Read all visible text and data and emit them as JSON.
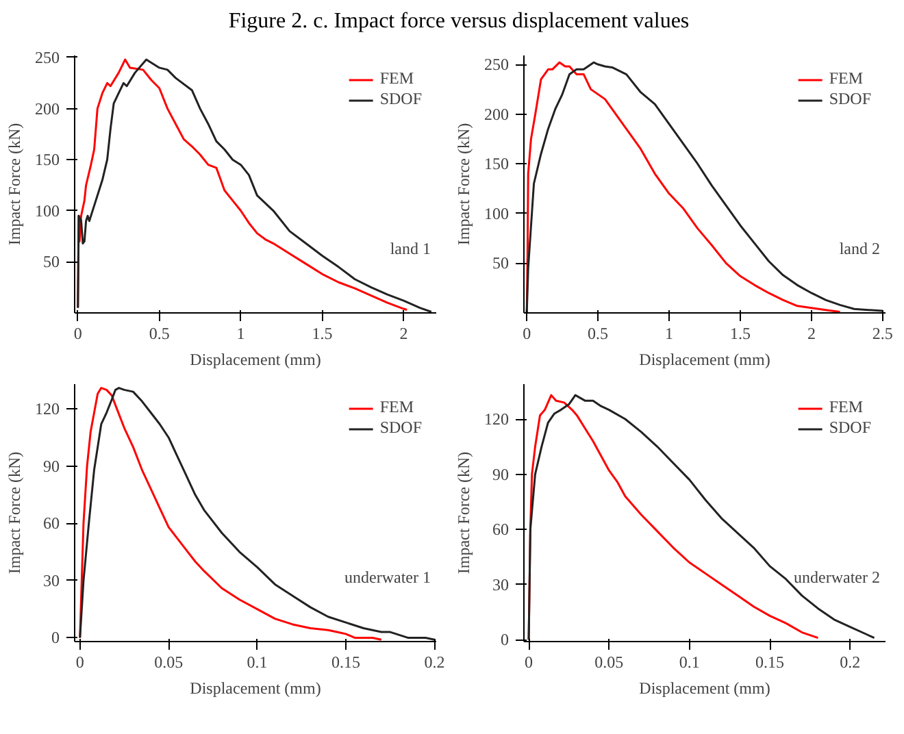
{
  "chart_data": [
    {
      "type": "line",
      "title": "Figure 2. c. Impact force versus displacement values",
      "xlabel": "Displacement (mm)",
      "ylabel": "Impact Force (kN)",
      "annotations": [
        "land 1"
      ],
      "legend": "top right",
      "grid": false,
      "xlim": [
        -0.02,
        2.2
      ],
      "ylim": [
        0,
        252
      ],
      "xticks": [
        0,
        0.5,
        1,
        1.5,
        2
      ],
      "yticks": [
        50,
        100,
        150,
        200,
        250
      ],
      "series": [
        {
          "name": "FEM",
          "color": "#ff0000",
          "x": [
            0,
            0.005,
            0.01,
            0.02,
            0.04,
            0.05,
            0.08,
            0.1,
            0.12,
            0.15,
            0.18,
            0.2,
            0.25,
            0.29,
            0.32,
            0.4,
            0.45,
            0.5,
            0.55,
            0.6,
            0.65,
            0.7,
            0.75,
            0.8,
            0.85,
            0.9,
            0.95,
            1.0,
            1.05,
            1.1,
            1.15,
            1.2,
            1.3,
            1.4,
            1.5,
            1.6,
            1.7,
            1.8,
            1.9,
            2.0,
            2.02
          ],
          "values": [
            5,
            95,
            70,
            95,
            110,
            125,
            145,
            160,
            200,
            215,
            225,
            222,
            235,
            248,
            240,
            238,
            228,
            220,
            200,
            185,
            170,
            163,
            155,
            145,
            142,
            120,
            110,
            100,
            88,
            78,
            72,
            68,
            58,
            48,
            38,
            30,
            24,
            17,
            10,
            4,
            3
          ]
        },
        {
          "name": "SDOF",
          "color": "#222222",
          "x": [
            0,
            0.005,
            0.02,
            0.03,
            0.04,
            0.05,
            0.06,
            0.07,
            0.1,
            0.15,
            0.18,
            0.2,
            0.22,
            0.25,
            0.28,
            0.3,
            0.35,
            0.42,
            0.45,
            0.5,
            0.55,
            0.6,
            0.7,
            0.75,
            0.8,
            0.85,
            0.9,
            0.95,
            1.0,
            1.05,
            1.1,
            1.2,
            1.3,
            1.4,
            1.5,
            1.6,
            1.7,
            1.8,
            1.9,
            2.0,
            2.1,
            2.17
          ],
          "values": [
            5,
            95,
            90,
            68,
            70,
            90,
            95,
            90,
            105,
            130,
            150,
            180,
            205,
            215,
            225,
            222,
            235,
            248,
            245,
            240,
            238,
            230,
            218,
            200,
            185,
            168,
            160,
            150,
            145,
            135,
            115,
            100,
            80,
            68,
            56,
            45,
            33,
            25,
            18,
            12,
            5,
            1
          ]
        }
      ]
    },
    {
      "type": "line",
      "xlabel": "Displacement (mm)",
      "ylabel": "Impact Force (kN)",
      "annotations": [
        "land 2"
      ],
      "legend": "top right",
      "grid": false,
      "xlim": [
        -0.02,
        2.52
      ],
      "ylim": [
        0,
        259
      ],
      "xticks": [
        0,
        0.5,
        1,
        1.5,
        2,
        2.5
      ],
      "yticks": [
        50,
        100,
        150,
        200,
        250
      ],
      "series": [
        {
          "name": "FEM",
          "color": "#ff0000",
          "x": [
            0,
            0.005,
            0.01,
            0.03,
            0.06,
            0.1,
            0.15,
            0.18,
            0.23,
            0.27,
            0.3,
            0.35,
            0.4,
            0.45,
            0.55,
            0.6,
            0.7,
            0.8,
            0.9,
            1.0,
            1.1,
            1.2,
            1.3,
            1.4,
            1.5,
            1.6,
            1.7,
            1.8,
            1.9,
            2.0,
            2.1,
            2.2
          ],
          "values": [
            0,
            50,
            140,
            175,
            200,
            235,
            245,
            245,
            252,
            248,
            248,
            240,
            240,
            225,
            215,
            205,
            185,
            165,
            140,
            120,
            105,
            85,
            68,
            50,
            37,
            28,
            20,
            13,
            7,
            5,
            3,
            1
          ]
        },
        {
          "name": "SDOF",
          "color": "#222222",
          "x": [
            0,
            0.01,
            0.05,
            0.1,
            0.15,
            0.2,
            0.25,
            0.3,
            0.35,
            0.4,
            0.47,
            0.5,
            0.55,
            0.6,
            0.7,
            0.8,
            0.9,
            1.0,
            1.1,
            1.2,
            1.3,
            1.4,
            1.5,
            1.6,
            1.7,
            1.8,
            1.9,
            2.0,
            2.1,
            2.2,
            2.3,
            2.4,
            2.5
          ],
          "values": [
            0,
            45,
            130,
            160,
            185,
            205,
            220,
            240,
            245,
            245,
            252,
            250,
            248,
            247,
            240,
            222,
            210,
            190,
            170,
            150,
            128,
            108,
            88,
            70,
            52,
            38,
            28,
            20,
            13,
            8,
            4,
            3,
            2
          ]
        }
      ]
    },
    {
      "type": "line",
      "xlabel": "Displacement (mm)",
      "ylabel": "Impact Force (kN)",
      "annotations": [
        "underwater 1"
      ],
      "legend": "top right",
      "grid": false,
      "xlim": [
        -0.003,
        0.201
      ],
      "ylim": [
        -2,
        133
      ],
      "xticks": [
        0,
        0.05,
        0.1,
        0.15,
        0.2
      ],
      "yticks": [
        0,
        30,
        60,
        90,
        120
      ],
      "series": [
        {
          "name": "FEM",
          "color": "#ff0000",
          "x": [
            0,
            0.002,
            0.004,
            0.006,
            0.008,
            0.01,
            0.012,
            0.015,
            0.018,
            0.02,
            0.025,
            0.03,
            0.035,
            0.04,
            0.045,
            0.05,
            0.055,
            0.06,
            0.065,
            0.07,
            0.08,
            0.09,
            0.1,
            0.11,
            0.12,
            0.13,
            0.14,
            0.145,
            0.15,
            0.155,
            0.165,
            0.17
          ],
          "values": [
            0,
            60,
            90,
            108,
            118,
            128,
            131,
            130,
            127,
            122,
            110,
            100,
            88,
            78,
            68,
            58,
            52,
            46,
            40,
            35,
            26,
            20,
            15,
            10,
            7,
            5,
            4,
            3,
            2,
            0,
            0,
            -1
          ]
        },
        {
          "name": "SDOF",
          "color": "#222222",
          "x": [
            0,
            0.002,
            0.005,
            0.008,
            0.01,
            0.012,
            0.015,
            0.018,
            0.02,
            0.022,
            0.025,
            0.03,
            0.035,
            0.04,
            0.045,
            0.05,
            0.055,
            0.06,
            0.065,
            0.07,
            0.08,
            0.09,
            0.1,
            0.11,
            0.12,
            0.13,
            0.14,
            0.15,
            0.16,
            0.17,
            0.175,
            0.185,
            0.19,
            0.195,
            0.2
          ],
          "values": [
            0,
            30,
            60,
            88,
            100,
            112,
            118,
            125,
            130,
            131,
            130,
            129,
            124,
            118,
            112,
            105,
            95,
            85,
            75,
            67,
            55,
            45,
            37,
            28,
            22,
            16,
            11,
            8,
            5,
            3,
            3,
            0,
            0,
            0,
            -1
          ]
        }
      ]
    },
    {
      "type": "line",
      "xlabel": "Displacement (mm)",
      "ylabel": "Impact Force (kN)",
      "annotations": [
        "underwater 2"
      ],
      "legend": "top right",
      "grid": false,
      "xlim": [
        -0.003,
        0.222
      ],
      "ylim": [
        -1,
        139
      ],
      "xticks": [
        0,
        0.05,
        0.1,
        0.15,
        0.2
      ],
      "yticks": [
        0,
        30,
        60,
        90,
        120
      ],
      "series": [
        {
          "name": "FEM",
          "color": "#ff0000",
          "x": [
            0,
            0.001,
            0.002,
            0.004,
            0.007,
            0.01,
            0.014,
            0.017,
            0.022,
            0.027,
            0.03,
            0.035,
            0.04,
            0.045,
            0.05,
            0.055,
            0.06,
            0.07,
            0.08,
            0.09,
            0.1,
            0.11,
            0.12,
            0.13,
            0.14,
            0.15,
            0.16,
            0.17,
            0.18
          ],
          "values": [
            0,
            60,
            90,
            105,
            122,
            125,
            133,
            130,
            129,
            125,
            122,
            115,
            108,
            100,
            92,
            86,
            78,
            68,
            59,
            50,
            42,
            36,
            30,
            24,
            18,
            13,
            9,
            4,
            1
          ]
        },
        {
          "name": "SDOF",
          "color": "#222222",
          "x": [
            0,
            0.001,
            0.004,
            0.008,
            0.012,
            0.016,
            0.02,
            0.025,
            0.029,
            0.035,
            0.04,
            0.045,
            0.05,
            0.06,
            0.07,
            0.08,
            0.09,
            0.1,
            0.11,
            0.12,
            0.13,
            0.14,
            0.15,
            0.16,
            0.17,
            0.18,
            0.19,
            0.2,
            0.21,
            0.215
          ],
          "values": [
            0,
            60,
            90,
            105,
            118,
            123,
            125,
            128,
            133,
            130,
            130,
            127,
            125,
            120,
            113,
            105,
            96,
            87,
            76,
            66,
            58,
            50,
            40,
            33,
            24,
            17,
            11,
            7,
            3,
            1
          ]
        }
      ]
    }
  ]
}
